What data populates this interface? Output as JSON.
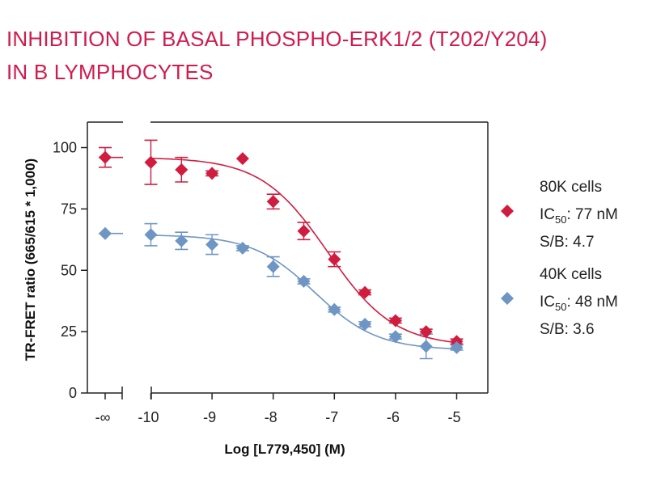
{
  "chart_data": {
    "type": "scatter",
    "title_line1": "INHIBITION OF BASAL PHOSPHO-ERK1/2 (T202/Y204)",
    "title_line2": "IN B LYMPHOCYTES",
    "xlabel": "Log [L779,450] (M)",
    "ylabel": "TR-FRET ratio (665/615 * 1,000)",
    "x_ticks": [
      "-∞",
      "-10",
      "-9",
      "-8",
      "-7",
      "-6",
      "-5"
    ],
    "x_tick_values": [
      null,
      -10,
      -9,
      -8,
      -7,
      -6,
      -5
    ],
    "y_ticks": [
      "0",
      "25",
      "50",
      "75",
      "100"
    ],
    "y_tick_values": [
      0,
      25,
      50,
      75,
      100
    ],
    "xlim": [
      -10,
      -5
    ],
    "ylim": [
      0,
      110
    ],
    "x_axis_break": true,
    "series": [
      {
        "name_line1": "80K cells",
        "ic50_prefix": "IC",
        "ic50_sub": "50",
        "ic50_value": ": 77 nM",
        "sb_text": "S/B: 4.7",
        "color": "#d01c3f",
        "marker": "diamond",
        "points": [
          {
            "x": "-inf",
            "y": 96,
            "err": 4
          },
          {
            "x": -10,
            "y": 94,
            "err": 9
          },
          {
            "x": -9.5,
            "y": 91,
            "err": 5
          },
          {
            "x": -9,
            "y": 89.5,
            "err": 1
          },
          {
            "x": -8.5,
            "y": 95.5,
            "err": 0
          },
          {
            "x": -8,
            "y": 78,
            "err": 3
          },
          {
            "x": -7.5,
            "y": 66,
            "err": 3.5
          },
          {
            "x": -7,
            "y": 54.5,
            "err": 3
          },
          {
            "x": -6.5,
            "y": 41,
            "err": 1
          },
          {
            "x": -6,
            "y": 29.5,
            "err": 1
          },
          {
            "x": -5.5,
            "y": 25,
            "err": 1
          },
          {
            "x": -5,
            "y": 21,
            "err": 1
          }
        ],
        "fit": {
          "top": 96,
          "bottom": 19,
          "log_ic50": -7.11,
          "hill": 0.8
        }
      },
      {
        "name_line1": "40K cells",
        "ic50_prefix": "IC",
        "ic50_sub": "50",
        "ic50_value": ": 48 nM",
        "sb_text": "S/B: 3.6",
        "color": "#6f95c4",
        "marker": "diamond",
        "points": [
          {
            "x": "-inf",
            "y": 65,
            "err": 0
          },
          {
            "x": -10,
            "y": 64.5,
            "err": 4.5
          },
          {
            "x": -9.5,
            "y": 62,
            "err": 3.5
          },
          {
            "x": -9,
            "y": 60.5,
            "err": 4
          },
          {
            "x": -8.5,
            "y": 59,
            "err": 1
          },
          {
            "x": -8,
            "y": 51.5,
            "err": 4
          },
          {
            "x": -7.5,
            "y": 45.5,
            "err": 1
          },
          {
            "x": -7,
            "y": 34,
            "err": 1
          },
          {
            "x": -6.5,
            "y": 28,
            "err": 1
          },
          {
            "x": -6,
            "y": 23,
            "err": 1
          },
          {
            "x": -5.5,
            "y": 19,
            "err": 5
          },
          {
            "x": -5,
            "y": 18.5,
            "err": 1
          }
        ],
        "fit": {
          "top": 64.5,
          "bottom": 17.5,
          "log_ic50": -7.32,
          "hill": 0.85
        }
      }
    ]
  }
}
